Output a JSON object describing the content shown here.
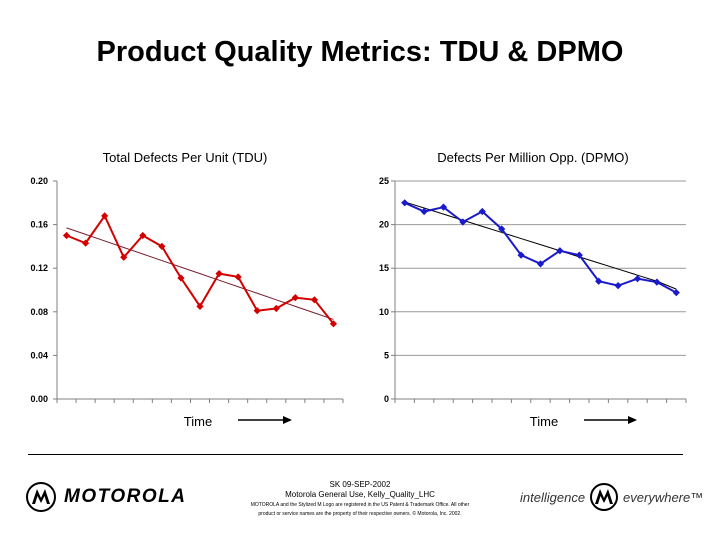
{
  "page": {
    "title": "Product Quality Metrics:  TDU & DPMO"
  },
  "chart_data": [
    {
      "type": "line",
      "title": "Total Defects Per Unit (TDU)",
      "xlabel": "Time",
      "ylabel": "",
      "ylim": [
        0,
        0.2
      ],
      "yticks": [
        "0.20",
        "0.16",
        "0.12",
        "0.08",
        "0.04",
        "0.00"
      ],
      "ytick_values": [
        0.2,
        0.16,
        0.12,
        0.08,
        0.04,
        0
      ],
      "series": [
        {
          "name": "TDU",
          "color": "#d40000",
          "values": [
            0.15,
            0.143,
            0.168,
            0.13,
            0.15,
            0.14,
            0.111,
            0.085,
            0.115,
            0.112,
            0.081,
            0.083,
            0.093,
            0.091,
            0.069
          ]
        },
        {
          "name": "Trend",
          "color": "#7a1f2e",
          "values": [
            0.157,
            0.151,
            0.145,
            0.139,
            0.133,
            0.127,
            0.121,
            0.115,
            0.109,
            0.103,
            0.097,
            0.091,
            0.085,
            0.079,
            0.073
          ]
        }
      ],
      "grid": false,
      "point_marker": "diamond"
    },
    {
      "type": "line",
      "title": "Defects Per Million Opp. (DPMO)",
      "xlabel": "Time",
      "ylabel": "",
      "ylim": [
        0,
        25
      ],
      "yticks": [
        "25",
        "20",
        "15",
        "10",
        "5",
        "0"
      ],
      "ytick_values": [
        25,
        20,
        15,
        10,
        5,
        0
      ],
      "series": [
        {
          "name": "DPMO",
          "color": "#1a1acc",
          "values": [
            22.5,
            21.5,
            22.0,
            20.3,
            21.5,
            19.5,
            16.5,
            15.5,
            17.0,
            16.5,
            13.5,
            13.0,
            13.8,
            13.4,
            12.2
          ]
        },
        {
          "name": "Trend",
          "color": "#000000",
          "values": [
            22.6,
            21.9,
            21.2,
            20.5,
            19.8,
            19.1,
            18.4,
            17.7,
            17.0,
            16.3,
            15.6,
            14.9,
            14.2,
            13.5,
            12.6
          ]
        }
      ],
      "grid": true,
      "point_marker": "diamond"
    }
  ],
  "footer": {
    "line1": "SK 09-SEP-2002",
    "line2": "Motorola General Use, Kelly_Quality_LHC",
    "line3": "MOTOROLA and the Stylized M Logo are registered in the US Patent & Trademark Office. All other",
    "line4": "product or service names are the property of their respective owners. © Motorola, Inc. 2002."
  },
  "brand": {
    "wordmark": "MOTOROLA",
    "tagline_a": "intelligence",
    "tagline_b": "everywhere™"
  },
  "colors": {
    "background": "#ffffff",
    "tdu_line": "#d40000",
    "dpmo_line": "#1a1acc"
  }
}
